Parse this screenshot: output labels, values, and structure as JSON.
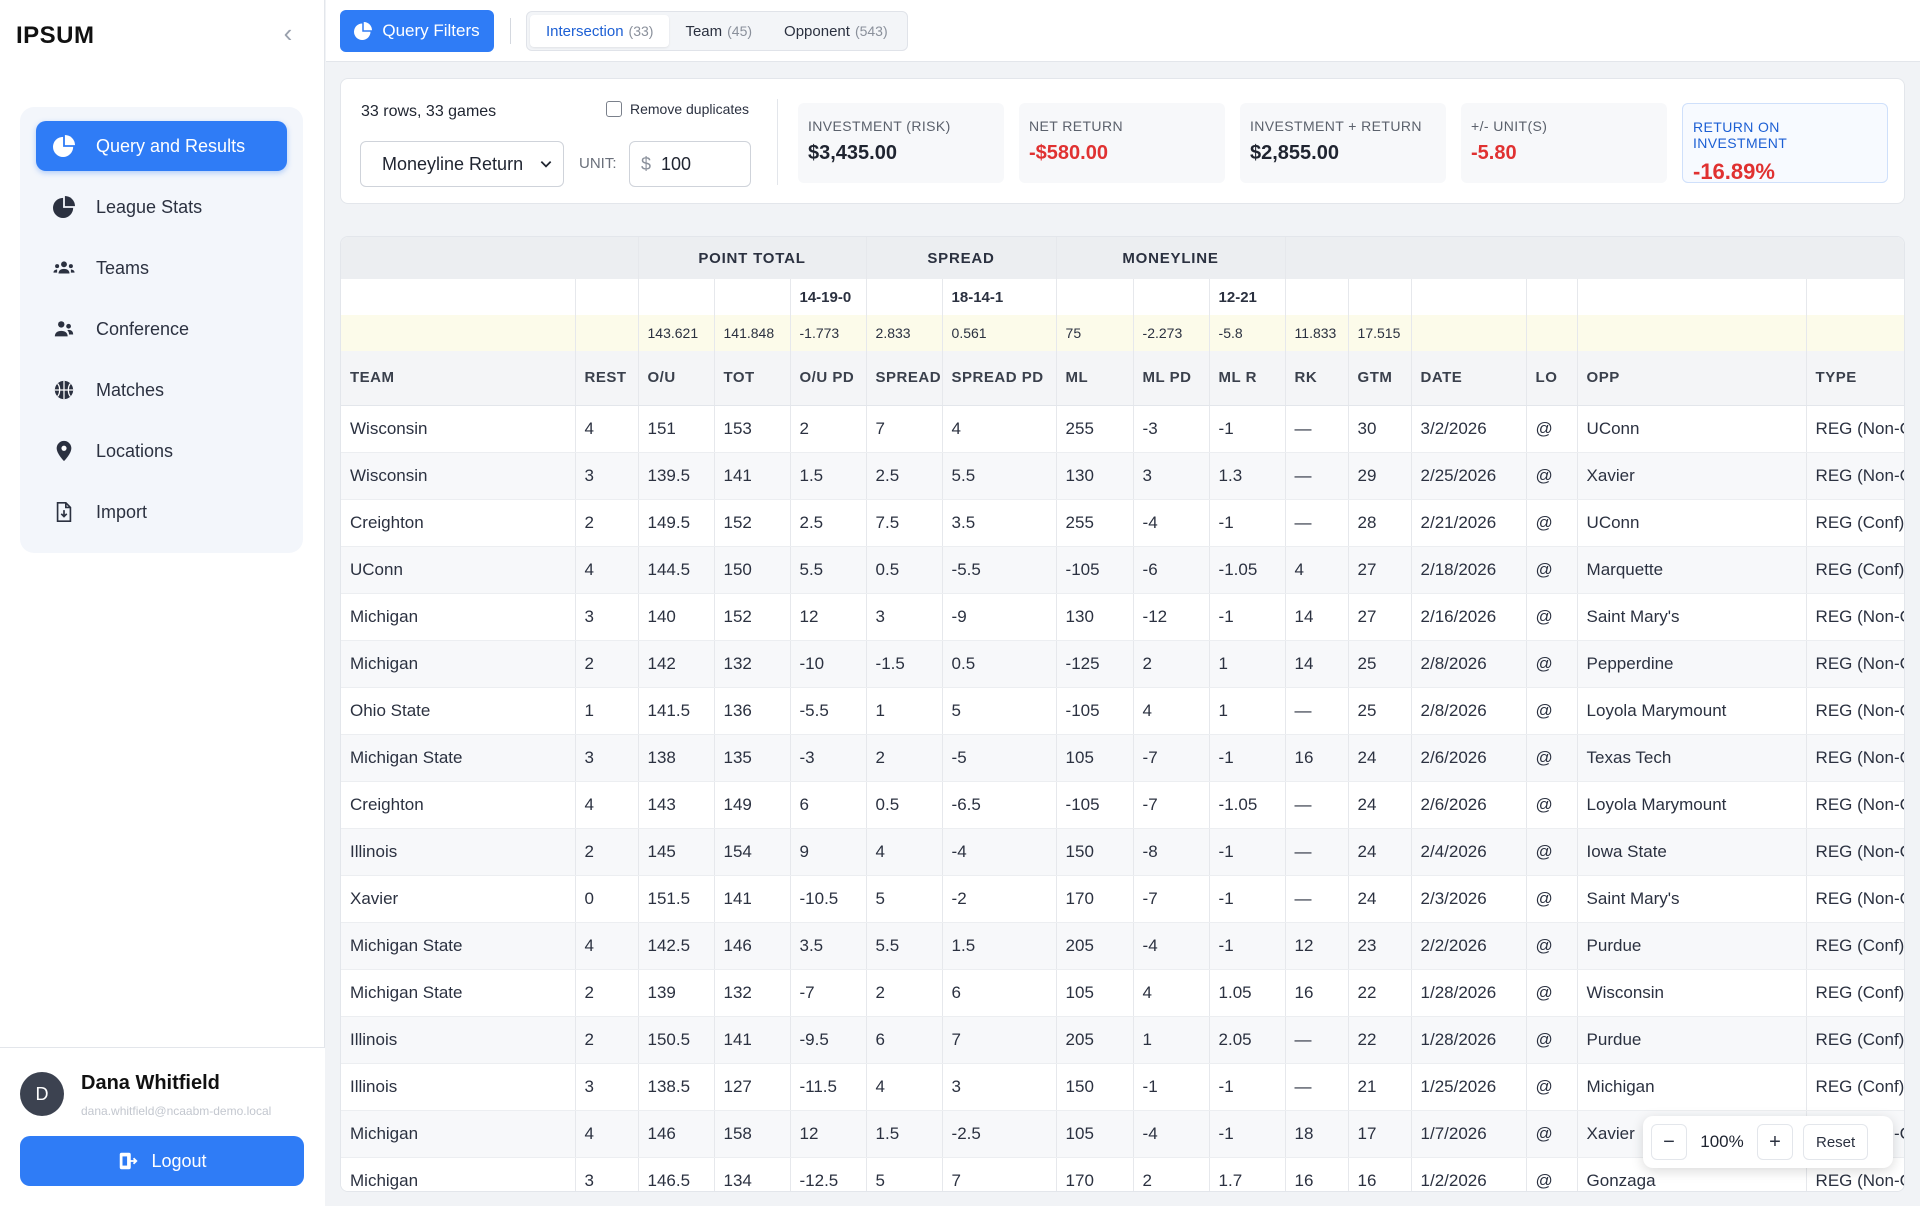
{
  "sidebar": {
    "brand": "IPSUM",
    "collapse_glyph": "‹",
    "items": [
      {
        "label": "Query and Results",
        "icon": "pie-chart-icon",
        "active": true
      },
      {
        "label": "League Stats",
        "icon": "pie-chart-icon"
      },
      {
        "label": "Teams",
        "icon": "users-icon"
      },
      {
        "label": "Conference",
        "icon": "user-group-icon"
      },
      {
        "label": "Matches",
        "icon": "basketball-icon"
      },
      {
        "label": "Locations",
        "icon": "map-pin-icon"
      },
      {
        "label": "Import",
        "icon": "file-import-icon"
      }
    ],
    "user": {
      "initial": "D",
      "name": "Dana Whitfield",
      "email": "dana.whitfield@ncaabm-demo.local",
      "logout_label": "Logout"
    }
  },
  "topbar": {
    "query_filters_label": "Query Filters",
    "tabs": [
      {
        "label": "Intersection",
        "count": "(33)",
        "active": true
      },
      {
        "label": "Team",
        "count": "(45)"
      },
      {
        "label": "Opponent",
        "count": "(543)"
      }
    ]
  },
  "summary": {
    "rows_info": "33 rows, 33 games",
    "remove_duplicates_label": "Remove duplicates",
    "select_value": "Moneyline Return",
    "unit_label": "UNIT:",
    "unit_currency": "$",
    "unit_value": "100",
    "metrics": [
      {
        "label": "INVESTMENT (RISK)",
        "value": "$3,435.00",
        "negative": false
      },
      {
        "label": "NET RETURN",
        "value": "-$580.00",
        "negative": true
      },
      {
        "label": "INVESTMENT + RETURN",
        "value": "$2,855.00",
        "negative": false
      },
      {
        "label": "+/- UNIT(S)",
        "value": "-5.80",
        "negative": true
      },
      {
        "label": "RETURN ON INVESTMENT",
        "value": "-16.89%",
        "negative": true
      }
    ]
  },
  "table": {
    "groups": {
      "point_total": "POINT TOTAL",
      "spread": "SPREAD",
      "moneyline": "MONEYLINE"
    },
    "records": {
      "ou_pd": "14-19-0",
      "spread_pd": "18-14-1",
      "ml_r": "12-21"
    },
    "averages": [
      "",
      "",
      "143.621",
      "141.848",
      "-1.773",
      "2.833",
      "0.561",
      "75",
      "-2.273",
      "-5.8",
      "11.833",
      "17.515",
      "",
      "",
      "",
      ""
    ],
    "columns": [
      "TEAM",
      "REST",
      "O/U",
      "TOT",
      "O/U PD",
      "SPREAD",
      "SPREAD PD",
      "ML",
      "ML PD",
      "ML R",
      "RK",
      "GTM",
      "DATE",
      "LO",
      "OPP",
      "TYPE"
    ],
    "rows": [
      [
        "Wisconsin",
        "4",
        "151",
        "153",
        "2",
        "7",
        "4",
        "255",
        "-3",
        "-1",
        "—",
        "30",
        "3/2/2026",
        "@",
        "UConn",
        "REG (Non-Conf)"
      ],
      [
        "Wisconsin",
        "3",
        "139.5",
        "141",
        "1.5",
        "2.5",
        "5.5",
        "130",
        "3",
        "1.3",
        "—",
        "29",
        "2/25/2026",
        "@",
        "Xavier",
        "REG (Non-Conf)"
      ],
      [
        "Creighton",
        "2",
        "149.5",
        "152",
        "2.5",
        "7.5",
        "3.5",
        "255",
        "-4",
        "-1",
        "—",
        "28",
        "2/21/2026",
        "@",
        "UConn",
        "REG (Conf)"
      ],
      [
        "UConn",
        "4",
        "144.5",
        "150",
        "5.5",
        "0.5",
        "-5.5",
        "-105",
        "-6",
        "-1.05",
        "4",
        "27",
        "2/18/2026",
        "@",
        "Marquette",
        "REG (Conf)"
      ],
      [
        "Michigan",
        "3",
        "140",
        "152",
        "12",
        "3",
        "-9",
        "130",
        "-12",
        "-1",
        "14",
        "27",
        "2/16/2026",
        "@",
        "Saint Mary's",
        "REG (Non-Conf)"
      ],
      [
        "Michigan",
        "2",
        "142",
        "132",
        "-10",
        "-1.5",
        "0.5",
        "-125",
        "2",
        "1",
        "14",
        "25",
        "2/8/2026",
        "@",
        "Pepperdine",
        "REG (Non-Conf)"
      ],
      [
        "Ohio State",
        "1",
        "141.5",
        "136",
        "-5.5",
        "1",
        "5",
        "-105",
        "4",
        "1",
        "—",
        "25",
        "2/8/2026",
        "@",
        "Loyola Marymount",
        "REG (Non-Conf)"
      ],
      [
        "Michigan State",
        "3",
        "138",
        "135",
        "-3",
        "2",
        "-5",
        "105",
        "-7",
        "-1",
        "16",
        "24",
        "2/6/2026",
        "@",
        "Texas Tech",
        "REG (Non-Conf)"
      ],
      [
        "Creighton",
        "4",
        "143",
        "149",
        "6",
        "0.5",
        "-6.5",
        "-105",
        "-7",
        "-1.05",
        "—",
        "24",
        "2/6/2026",
        "@",
        "Loyola Marymount",
        "REG (Non-Conf)"
      ],
      [
        "Illinois",
        "2",
        "145",
        "154",
        "9",
        "4",
        "-4",
        "150",
        "-8",
        "-1",
        "—",
        "24",
        "2/4/2026",
        "@",
        "Iowa State",
        "REG (Non-Conf)"
      ],
      [
        "Xavier",
        "0",
        "151.5",
        "141",
        "-10.5",
        "5",
        "-2",
        "170",
        "-7",
        "-1",
        "—",
        "24",
        "2/3/2026",
        "@",
        "Saint Mary's",
        "REG (Non-Conf)"
      ],
      [
        "Michigan State",
        "4",
        "142.5",
        "146",
        "3.5",
        "5.5",
        "1.5",
        "205",
        "-4",
        "-1",
        "12",
        "23",
        "2/2/2026",
        "@",
        "Purdue",
        "REG (Conf)"
      ],
      [
        "Michigan State",
        "2",
        "139",
        "132",
        "-7",
        "2",
        "6",
        "105",
        "4",
        "1.05",
        "16",
        "22",
        "1/28/2026",
        "@",
        "Wisconsin",
        "REG (Conf)"
      ],
      [
        "Illinois",
        "2",
        "150.5",
        "141",
        "-9.5",
        "6",
        "7",
        "205",
        "1",
        "2.05",
        "—",
        "22",
        "1/28/2026",
        "@",
        "Purdue",
        "REG (Conf)"
      ],
      [
        "Illinois",
        "3",
        "138.5",
        "127",
        "-11.5",
        "4",
        "3",
        "150",
        "-1",
        "-1",
        "—",
        "21",
        "1/25/2026",
        "@",
        "Michigan",
        "REG (Conf)"
      ],
      [
        "Michigan",
        "4",
        "146",
        "158",
        "12",
        "1.5",
        "-2.5",
        "105",
        "-4",
        "-1",
        "18",
        "17",
        "1/7/2026",
        "@",
        "Xavier",
        "REG (Non-Conf)"
      ],
      [
        "Michigan",
        "3",
        "146.5",
        "134",
        "-12.5",
        "5",
        "7",
        "170",
        "2",
        "1.7",
        "16",
        "16",
        "1/2/2026",
        "@",
        "Gonzaga",
        "REG (Non-Conf)"
      ]
    ]
  },
  "zoom": {
    "minus": "−",
    "value": "100%",
    "plus": "+",
    "reset_label": "Reset"
  },
  "colors": {
    "accent": "#2f7cf6",
    "negative": "#e03131",
    "avg_row": "#fcfbea"
  }
}
